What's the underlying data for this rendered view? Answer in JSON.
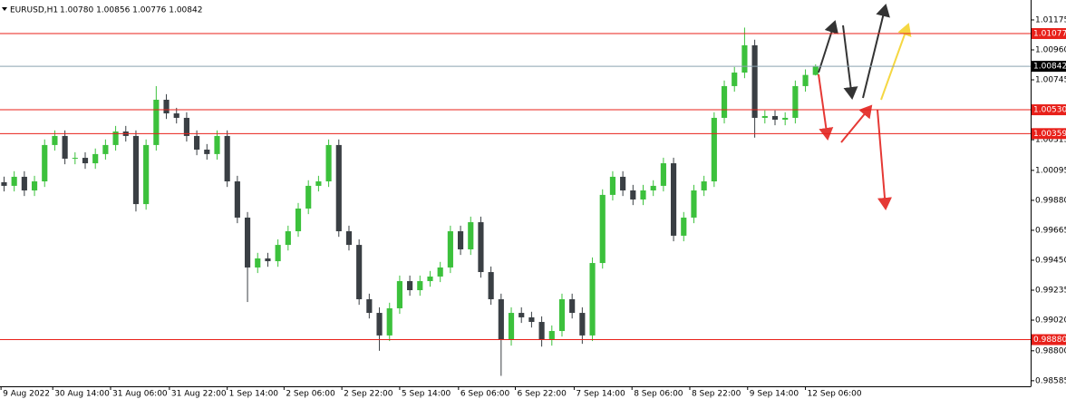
{
  "chart_data": {
    "type": "candlestick",
    "title": "EURUSD,H1",
    "info_label": "1.00780 1.00856 1.00776 1.00842",
    "open": [
      1.0001,
      0.99984,
      1.00049,
      0.99951,
      1.00016,
      1.00277,
      1.00342,
      1.00179,
      1.00185,
      1.00146,
      1.00212,
      1.00277,
      1.00374,
      1.00342,
      0.99853,
      1.00277,
      1.00602,
      1.00504,
      1.00472,
      1.00342,
      1.00244,
      1.00212,
      1.00342,
      1.00016,
      0.99756,
      0.99398,
      0.99463,
      0.99443,
      0.9956,
      0.99658,
      0.99821,
      0.99984,
      1.00016,
      1.00277,
      0.99658,
      0.9956,
      0.9917,
      0.99072,
      0.9891,
      0.99105,
      0.993,
      0.99235,
      0.993,
      0.99333,
      0.99398,
      0.99658,
      0.99528,
      0.99723,
      0.99365,
      0.9917,
      0.98877,
      0.99072,
      0.9904,
      0.99007,
      0.98877,
      0.98942,
      0.9917,
      0.99072,
      0.9891,
      0.9943,
      0.99919,
      1.00049,
      0.99951,
      0.99886,
      0.99951,
      0.99984,
      1.00146,
      0.99626,
      0.99756,
      0.99951,
      1.00016,
      1.00472,
      1.007,
      1.00797,
      1.00993,
      1.00472,
      1.00485,
      1.00459,
      1.00472,
      1.007,
      1.0078
    ],
    "high": [
      1.0005,
      1.00089,
      1.00089,
      1.00056,
      1.00317,
      1.00382,
      1.00382,
      1.00225,
      1.00225,
      1.00252,
      1.00317,
      1.00414,
      1.00414,
      1.00382,
      1.00317,
      1.007,
      1.00642,
      1.00544,
      1.00512,
      1.00382,
      1.00284,
      1.00382,
      1.00382,
      1.00056,
      0.99796,
      0.99503,
      0.99503,
      0.996,
      0.99698,
      0.99861,
      1.00024,
      1.00056,
      1.00317,
      1.00317,
      0.99698,
      0.996,
      0.9921,
      0.99112,
      0.99145,
      0.9934,
      0.9934,
      0.9934,
      0.99373,
      0.99438,
      0.99698,
      0.99698,
      0.99763,
      0.99763,
      0.99405,
      0.9921,
      0.99112,
      0.99112,
      0.9908,
      0.99047,
      0.98982,
      0.9921,
      0.9921,
      0.99112,
      0.9947,
      0.99959,
      1.00089,
      1.00089,
      0.99991,
      0.99991,
      1.00024,
      1.00186,
      1.00186,
      0.99796,
      0.99991,
      1.00056,
      1.00512,
      1.0074,
      1.00837,
      1.0112,
      1.01033,
      1.00525,
      1.00525,
      1.00512,
      1.0074,
      1.0082,
      1.00856
    ],
    "low": [
      0.99944,
      0.99944,
      0.99911,
      0.99911,
      0.99976,
      1.00237,
      1.00139,
      1.00139,
      1.00106,
      1.00106,
      1.00172,
      1.00237,
      1.00302,
      0.998,
      0.99813,
      1.00237,
      1.00464,
      1.00432,
      1.00302,
      1.00204,
      1.00172,
      1.00172,
      0.99976,
      0.99716,
      0.9915,
      0.99358,
      0.99403,
      0.99403,
      0.9952,
      0.99618,
      0.99781,
      0.99944,
      0.99976,
      0.99618,
      0.9952,
      0.9913,
      0.99032,
      0.988,
      0.9887,
      0.99065,
      0.99195,
      0.99195,
      0.9926,
      0.99293,
      0.99358,
      0.99488,
      0.99488,
      0.99325,
      0.9913,
      0.9862,
      0.98837,
      0.99,
      0.98967,
      0.9883,
      0.98837,
      0.98902,
      0.99032,
      0.9885,
      0.9887,
      0.9939,
      0.99879,
      0.99911,
      0.99846,
      0.99846,
      0.99911,
      0.99944,
      0.99586,
      0.99586,
      0.99716,
      0.99911,
      0.99976,
      1.00432,
      1.0066,
      1.00757,
      1.0033,
      1.00432,
      1.00419,
      1.00419,
      1.00432,
      1.0066,
      1.00776
    ],
    "close": [
      0.99984,
      1.00049,
      0.99951,
      1.00016,
      1.00277,
      1.00342,
      1.00179,
      1.00185,
      1.00146,
      1.00212,
      1.00277,
      1.00374,
      1.00342,
      0.99853,
      1.00277,
      1.00602,
      1.00504,
      1.00472,
      1.00342,
      1.00244,
      1.00212,
      1.00342,
      1.00016,
      0.99756,
      0.99398,
      0.99463,
      0.99443,
      0.9956,
      0.99658,
      0.99821,
      0.99984,
      1.00016,
      1.00277,
      0.99658,
      0.9956,
      0.9917,
      0.99072,
      0.9891,
      0.99105,
      0.993,
      0.99235,
      0.993,
      0.99333,
      0.99398,
      0.99658,
      0.99528,
      0.99723,
      0.99365,
      0.9917,
      0.98877,
      0.99072,
      0.9904,
      0.99007,
      0.98877,
      0.98942,
      0.9917,
      0.99072,
      0.9891,
      0.9943,
      0.99919,
      1.00049,
      0.99951,
      0.99886,
      0.99951,
      0.99984,
      1.00146,
      0.99626,
      0.99756,
      0.99951,
      1.00016,
      1.00472,
      1.007,
      1.00797,
      1.00993,
      1.00472,
      1.00485,
      1.00459,
      1.00472,
      1.007,
      1.0078,
      1.00842
    ],
    "up_color": "#3cc13c",
    "down_color": "#3a3f44",
    "xlim": [
      -0.4,
      101.2
    ],
    "ylim": [
      0.98545,
      1.01318
    ],
    "xticks": [
      {
        "value": -0.3,
        "label": "9 Aug 2022"
      },
      {
        "value": 4.8,
        "label": "30 Aug 14:00"
      },
      {
        "value": 10.5,
        "label": "31 Aug 06:00"
      },
      {
        "value": 16.3,
        "label": "31 Aug 22:00"
      },
      {
        "value": 22.0,
        "label": "1 Sep 14:00"
      },
      {
        "value": 27.6,
        "label": "2 Sep 06:00"
      },
      {
        "value": 33.3,
        "label": "2 Sep 22:00"
      },
      {
        "value": 39.0,
        "label": "5 Sep 14:00"
      },
      {
        "value": 44.8,
        "label": "6 Sep 06:00"
      },
      {
        "value": 50.4,
        "label": "6 Sep 22:00"
      },
      {
        "value": 56.2,
        "label": "7 Sep 14:00"
      },
      {
        "value": 61.9,
        "label": "8 Sep 06:00"
      },
      {
        "value": 67.6,
        "label": "8 Sep 22:00"
      },
      {
        "value": 73.3,
        "label": "9 Sep 14:00"
      },
      {
        "value": 79.0,
        "label": "12 Sep 06:00"
      }
    ],
    "yticks": [
      {
        "value": 1.01175,
        "label": "1.01175"
      },
      {
        "value": 1.0096,
        "label": "1.00960"
      },
      {
        "value": 1.00745,
        "label": "1.00745"
      },
      {
        "value": 1.00315,
        "label": "1.00315"
      },
      {
        "value": 1.00095,
        "label": "1.00095"
      },
      {
        "value": 0.9988,
        "label": "0.99880"
      },
      {
        "value": 0.99665,
        "label": "0.99665"
      },
      {
        "value": 0.9945,
        "label": "0.99450"
      },
      {
        "value": 0.99235,
        "label": "0.99235"
      },
      {
        "value": 0.9902,
        "label": "0.99020"
      },
      {
        "value": 0.988,
        "label": "0.98800"
      },
      {
        "value": 0.98585,
        "label": "0.98585"
      }
    ],
    "levels": [
      {
        "value": 1.01077,
        "label": "1.01077",
        "color": "#e8201a"
      },
      {
        "value": 1.00842,
        "label": "1.00842",
        "color": "#8aa3b0",
        "label_color": "#000000"
      },
      {
        "value": 1.0053,
        "label": "1.00530",
        "color": "#e8201a"
      },
      {
        "value": 1.00359,
        "label": "1.00359",
        "color": "#e8201a"
      },
      {
        "value": 0.9888,
        "label": "0.98880",
        "color": "#e8201a"
      }
    ]
  }
}
